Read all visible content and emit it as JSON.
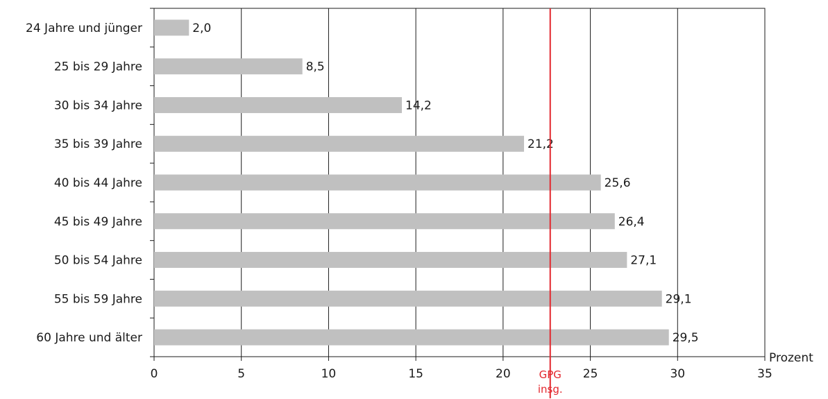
{
  "chart_data": {
    "type": "bar",
    "orientation": "horizontal",
    "categories": [
      "24 Jahre und jünger",
      "25 bis 29 Jahre",
      "30 bis 34 Jahre",
      "35 bis 39 Jahre",
      "40 bis 44 Jahre",
      "45 bis 49 Jahre",
      "50 bis 54 Jahre",
      "55 bis 59 Jahre",
      "60 Jahre und älter"
    ],
    "values": [
      2.0,
      8.5,
      14.2,
      21.2,
      25.6,
      26.4,
      27.1,
      29.1,
      29.5
    ],
    "value_labels": [
      "2,0",
      "8,5",
      "14,2",
      "21,2",
      "25,6",
      "26,4",
      "27,1",
      "29,1",
      "29,5"
    ],
    "xlim": [
      0,
      35
    ],
    "xticks": [
      0,
      5,
      10,
      15,
      20,
      25,
      30,
      35
    ],
    "xlabel": "Prozent",
    "reference_line": {
      "value": 22.7,
      "label_line1": "GPG",
      "label_line2": "insg.",
      "color": "#e3262d"
    },
    "bar_color": "#c0c0c0",
    "grid": "vertical"
  }
}
